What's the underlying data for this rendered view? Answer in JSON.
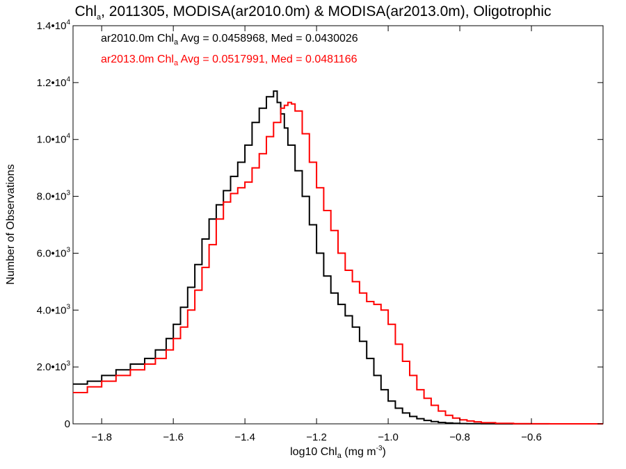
{
  "chart_data": {
    "type": "step",
    "title": {
      "pre": "Chl",
      "sub": "a",
      "post": ", 2011305, MODISA(ar2010.0m) & MODISA(ar2013.0m), Oligotrophic"
    },
    "xlabel": {
      "pre": "log10 Chl",
      "sub": "a",
      "post": " (mg m",
      "sup": "-3",
      "end": ")"
    },
    "ylabel": "Number of Observations",
    "xlim": [
      -1.88,
      -0.4
    ],
    "ylim": [
      0,
      14000
    ],
    "xticks": [
      -1.8,
      -1.6,
      -1.4,
      -1.2,
      -1.0,
      -0.8,
      -0.6
    ],
    "xtick_labels": [
      "−1.8",
      "−1.6",
      "−1.4",
      "−1.2",
      "−1.0",
      "−0.8",
      "−0.6"
    ],
    "yticks": [
      {
        "value": 0,
        "label": "0",
        "exp": ""
      },
      {
        "value": 2000,
        "label": "2.0•10",
        "exp": "3"
      },
      {
        "value": 4000,
        "label": "4.0•10",
        "exp": "3"
      },
      {
        "value": 6000,
        "label": "6.0•10",
        "exp": "3"
      },
      {
        "value": 8000,
        "label": "8.0•10",
        "exp": "3"
      },
      {
        "value": 10000,
        "label": "1.0•10",
        "exp": "4"
      },
      {
        "value": 12000,
        "label": "1.2•10",
        "exp": "4"
      },
      {
        "value": 14000,
        "label": "1.4•10",
        "exp": "4"
      }
    ],
    "legend": [
      {
        "pre": "ar2010.0m Chl",
        "sub": "a",
        "post": " Avg = 0.0458968, Med = 0.0430026",
        "color": "#000000"
      },
      {
        "pre": "ar2013.0m Chl",
        "sub": "a",
        "post": " Avg = 0.0517991, Med = 0.0481166",
        "color": "#ff0000"
      }
    ],
    "series": [
      {
        "color": "#000000",
        "x": [
          -1.88,
          -1.84,
          -1.8,
          -1.76,
          -1.72,
          -1.68,
          -1.65,
          -1.62,
          -1.6,
          -1.58,
          -1.56,
          -1.54,
          -1.52,
          -1.5,
          -1.48,
          -1.46,
          -1.44,
          -1.42,
          -1.4,
          -1.38,
          -1.36,
          -1.34,
          -1.32,
          -1.31,
          -1.3,
          -1.29,
          -1.28,
          -1.26,
          -1.24,
          -1.22,
          -1.2,
          -1.18,
          -1.16,
          -1.14,
          -1.12,
          -1.1,
          -1.08,
          -1.06,
          -1.04,
          -1.02,
          -1.0,
          -0.98,
          -0.96,
          -0.94,
          -0.92,
          -0.9,
          -0.88,
          -0.86,
          -0.84,
          -0.82,
          -0.8,
          -0.78,
          -0.74,
          -0.7,
          -0.65,
          -0.6,
          -0.55,
          -0.5,
          -0.4
        ],
        "y": [
          1400,
          1500,
          1700,
          1900,
          2100,
          2300,
          2600,
          3000,
          3500,
          4100,
          4800,
          5600,
          6500,
          7200,
          7700,
          8200,
          8700,
          9200,
          9800,
          10600,
          11100,
          11500,
          11700,
          11300,
          10900,
          10400,
          9800,
          8900,
          8000,
          7000,
          6000,
          5200,
          4600,
          4200,
          3800,
          3400,
          2900,
          2300,
          1700,
          1200,
          800,
          550,
          380,
          260,
          180,
          120,
          80,
          50,
          30,
          20,
          10,
          6,
          3,
          1,
          0,
          0,
          0,
          0,
          0
        ]
      },
      {
        "color": "#ff0000",
        "x": [
          -1.88,
          -1.84,
          -1.8,
          -1.76,
          -1.72,
          -1.68,
          -1.65,
          -1.62,
          -1.6,
          -1.58,
          -1.56,
          -1.54,
          -1.52,
          -1.5,
          -1.48,
          -1.46,
          -1.44,
          -1.42,
          -1.4,
          -1.38,
          -1.36,
          -1.34,
          -1.32,
          -1.3,
          -1.29,
          -1.28,
          -1.27,
          -1.26,
          -1.24,
          -1.22,
          -1.2,
          -1.18,
          -1.16,
          -1.14,
          -1.12,
          -1.1,
          -1.08,
          -1.06,
          -1.04,
          -1.02,
          -1.0,
          -0.98,
          -0.96,
          -0.94,
          -0.92,
          -0.9,
          -0.88,
          -0.86,
          -0.84,
          -0.82,
          -0.8,
          -0.78,
          -0.76,
          -0.74,
          -0.7,
          -0.65,
          -0.6,
          -0.55,
          -0.5,
          -0.4
        ],
        "y": [
          1100,
          1300,
          1500,
          1700,
          1900,
          2100,
          2300,
          2600,
          3000,
          3400,
          4000,
          4700,
          5500,
          6300,
          7200,
          7800,
          8100,
          8300,
          8500,
          9000,
          9500,
          10100,
          10600,
          11100,
          11200,
          11300,
          11250,
          11000,
          10200,
          9200,
          8300,
          7500,
          6800,
          6000,
          5400,
          5000,
          4600,
          4300,
          4200,
          4000,
          3500,
          2800,
          2200,
          1700,
          1200,
          900,
          650,
          450,
          300,
          200,
          140,
          100,
          70,
          40,
          20,
          8,
          3,
          1,
          0,
          0
        ]
      }
    ]
  }
}
